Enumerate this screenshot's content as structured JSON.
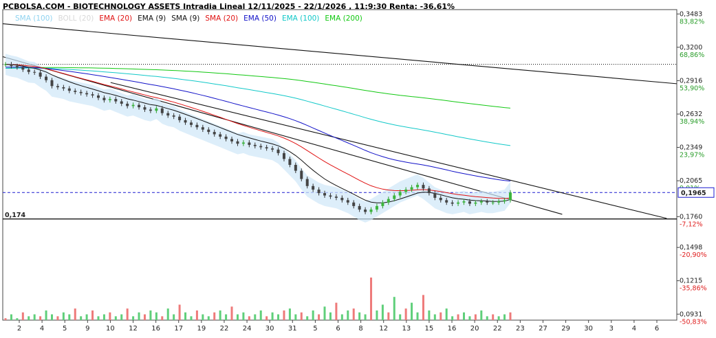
{
  "header": {
    "title": "PCBOLSA.COM - BIOTECHNOLOGY ASSETS Intradia Lineal 12/11/2025 - 22/1/2026 , 11:9:30 Renta: -36,61%"
  },
  "legend": [
    {
      "label": "SMA (100)",
      "color": "#8fd3f0"
    },
    {
      "label": "BOLL (20)",
      "color": "#d8d8d8"
    },
    {
      "label": "EMA (20)",
      "color": "#e01010"
    },
    {
      "label": "EMA (9)",
      "color": "#111111"
    },
    {
      "label": "SMA (9)",
      "color": "#111111"
    },
    {
      "label": "SMA (20)",
      "color": "#e01010"
    },
    {
      "label": "EMA (50)",
      "color": "#1010c8"
    },
    {
      "label": "EMA (100)",
      "color": "#10c8c8"
    },
    {
      "label": "EMA (200)",
      "color": "#10c810"
    }
  ],
  "chart_data": {
    "type": "candlestick",
    "y_axis": {
      "ticks": [
        {
          "value": 0.3483,
          "label": "0,3483",
          "pct": "83,82%"
        },
        {
          "value": 0.32,
          "label": "0,3200",
          "pct": "68,86%"
        },
        {
          "value": 0.2916,
          "label": "0,2916",
          "pct": "53,90%"
        },
        {
          "value": 0.2632,
          "label": "0,2632",
          "pct": "38,94%"
        },
        {
          "value": 0.2349,
          "label": "0,2349",
          "pct": "23,97%"
        },
        {
          "value": 0.2065,
          "label": "0,2065",
          "pct": "9,01%"
        },
        {
          "value": 0.176,
          "label": "0,1760",
          "pct": "-7,12%"
        },
        {
          "value": 0.1498,
          "label": "0,1498",
          "pct": "-20,90%"
        },
        {
          "value": 0.1215,
          "label": "0,1215",
          "pct": "-35,86%"
        },
        {
          "value": 0.0931,
          "label": "0,0931",
          "pct": "-50,83%"
        }
      ],
      "range": [
        0.088,
        0.352
      ]
    },
    "current_price": {
      "value": 0.1965,
      "label": "0,1965"
    },
    "support_level": {
      "value": 0.174,
      "label": "0,174"
    },
    "resistance_dotted": 0.3055,
    "x_labels": [
      "2",
      "4",
      "5",
      "9",
      "10",
      "12",
      "16",
      "17",
      "19",
      "22",
      "24",
      "30",
      "31",
      "5",
      "6",
      "8",
      "12",
      "13",
      "15",
      "16",
      "20",
      "22",
      "23",
      "27",
      "29",
      "30",
      "3",
      "4",
      "6"
    ],
    "close_series": [
      0.3055,
      0.304,
      0.303,
      0.301,
      0.299,
      0.2985,
      0.295,
      0.292,
      0.287,
      0.286,
      0.285,
      0.283,
      0.282,
      0.281,
      0.28,
      0.279,
      0.277,
      0.275,
      0.276,
      0.274,
      0.272,
      0.27,
      0.271,
      0.269,
      0.267,
      0.266,
      0.268,
      0.264,
      0.262,
      0.261,
      0.258,
      0.256,
      0.254,
      0.252,
      0.25,
      0.248,
      0.246,
      0.244,
      0.242,
      0.24,
      0.238,
      0.239,
      0.237,
      0.236,
      0.235,
      0.234,
      0.233,
      0.23,
      0.225,
      0.22,
      0.215,
      0.208,
      0.202,
      0.199,
      0.196,
      0.194,
      0.193,
      0.192,
      0.19,
      0.188,
      0.185,
      0.182,
      0.18,
      0.182,
      0.185,
      0.188,
      0.191,
      0.194,
      0.197,
      0.199,
      0.201,
      0.203,
      0.2,
      0.196,
      0.192,
      0.19,
      0.188,
      0.187,
      0.188,
      0.189,
      0.187,
      0.188,
      0.189,
      0.188,
      0.188,
      0.189,
      0.19,
      0.1965
    ],
    "volume_series": [
      1,
      3,
      1,
      4,
      2,
      3,
      2,
      5,
      3,
      2,
      4,
      3,
      6,
      2,
      3,
      5,
      2,
      3,
      4,
      2,
      3,
      6,
      2,
      4,
      3,
      5,
      4,
      2,
      6,
      3,
      8,
      4,
      2,
      5,
      3,
      2,
      4,
      5,
      3,
      7,
      3,
      4,
      2,
      3,
      5,
      2,
      4,
      3,
      5,
      6,
      3,
      4,
      2,
      5,
      3,
      7,
      4,
      9,
      3,
      5,
      6,
      4,
      3,
      22,
      5,
      8,
      4,
      12,
      3,
      6,
      9,
      4,
      13,
      5,
      3,
      4,
      6,
      2,
      3,
      4,
      2,
      3,
      5,
      2,
      3,
      2,
      3,
      4
    ],
    "trendlines": [
      {
        "from": [
          0,
          0.34
        ],
        "to": [
          1.0,
          0.289
        ]
      },
      {
        "from": [
          0,
          0.312
        ],
        "to": [
          0.83,
          0.178
        ]
      },
      {
        "from": [
          0.16,
          0.29
        ],
        "to": [
          0.985,
          0.1745
        ]
      }
    ]
  }
}
